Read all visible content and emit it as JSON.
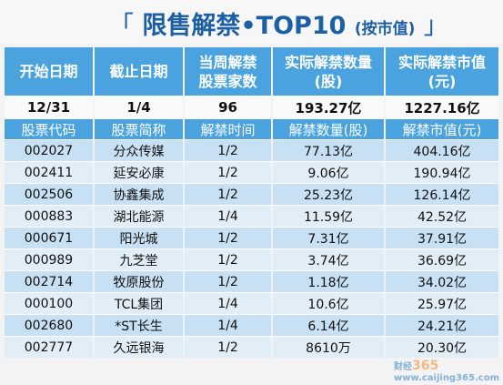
{
  "title": {
    "open_bracket": "「",
    "main": "限售解禁•TOP10",
    "sub": "(按市值)",
    "close_bracket": "」"
  },
  "summary_headers": [
    "开始日期",
    "截止日期",
    "当周解禁股票家数",
    "实际解禁数量(股)",
    "实际解禁市值(元)"
  ],
  "summary_headers_lines": [
    [
      "开始日期"
    ],
    [
      "截止日期"
    ],
    [
      "当周解禁",
      "股票家数"
    ],
    [
      "实际解禁数量",
      "(股)"
    ],
    [
      "实际解禁市值",
      "(元)"
    ]
  ],
  "summary_values": [
    "12/31",
    "1/4",
    "96",
    "193.27亿",
    "1227.16亿"
  ],
  "column_headers": [
    "股票代码",
    "股票简称",
    "解禁时间",
    "解禁数量(股)",
    "解禁市值(元)"
  ],
  "rows": [
    [
      "002027",
      "分众传媒",
      "1/2",
      "77.13亿",
      "404.16亿"
    ],
    [
      "002411",
      "延安必康",
      "1/2",
      "9.06亿",
      "190.94亿"
    ],
    [
      "002506",
      "协鑫集成",
      "1/2",
      "25.23亿",
      "126.14亿"
    ],
    [
      "000883",
      "湖北能源",
      "1/4",
      "11.59亿",
      "42.52亿"
    ],
    [
      "000671",
      "阳光城",
      "1/2",
      "7.31亿",
      "37.91亿"
    ],
    [
      "000989",
      "九芝堂",
      "1/2",
      "3.74亿",
      "36.69亿"
    ],
    [
      "002714",
      "牧原股份",
      "1/2",
      "1.18亿",
      "34.02亿"
    ],
    [
      "000100",
      "TCL集团",
      "1/4",
      "10.6亿",
      "25.97亿"
    ],
    [
      "002680",
      "*ST长生",
      "1/4",
      "6.14亿",
      "24.21亿"
    ],
    [
      "002777",
      "久远银海",
      "1/2",
      "8610万",
      "20.30亿"
    ]
  ],
  "watermark": {
    "text": "财经",
    "number": "365",
    "url": "www.caijing365.com"
  }
}
